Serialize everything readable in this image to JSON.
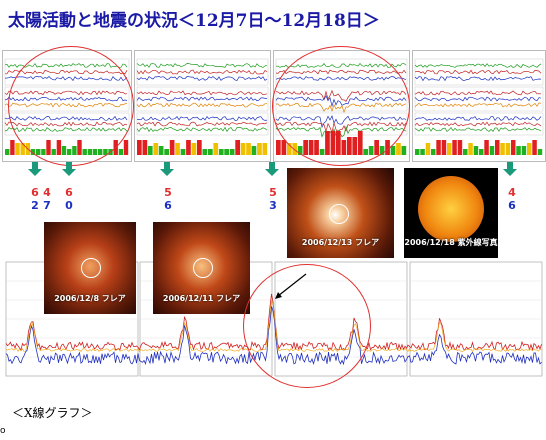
{
  "title": "太陽活動と地震の状況＜12月7日～12月18日＞",
  "photos": [
    {
      "label": "2006/12/8  フレア"
    },
    {
      "label": "2006/12/11  フレア"
    },
    {
      "label": "2006/12/13  フレア"
    },
    {
      "label": "2006/12/18  紫外線写真"
    }
  ],
  "quake_groups": [
    {
      "top": "6",
      "bottom": "2"
    },
    {
      "top": "4",
      "bottom": "7"
    },
    {
      "top": "6",
      "bottom": "0"
    },
    {
      "top": "5",
      "bottom": "6"
    },
    {
      "top": "5",
      "bottom": "3"
    },
    {
      "top": "4",
      "bottom": "6"
    }
  ],
  "xray_caption": "＜X線グラフ＞",
  "stray_char": "o",
  "colors": {
    "circle": "#e03030",
    "arrow": "#1a9a7a",
    "title": "#1a1aa6"
  }
}
